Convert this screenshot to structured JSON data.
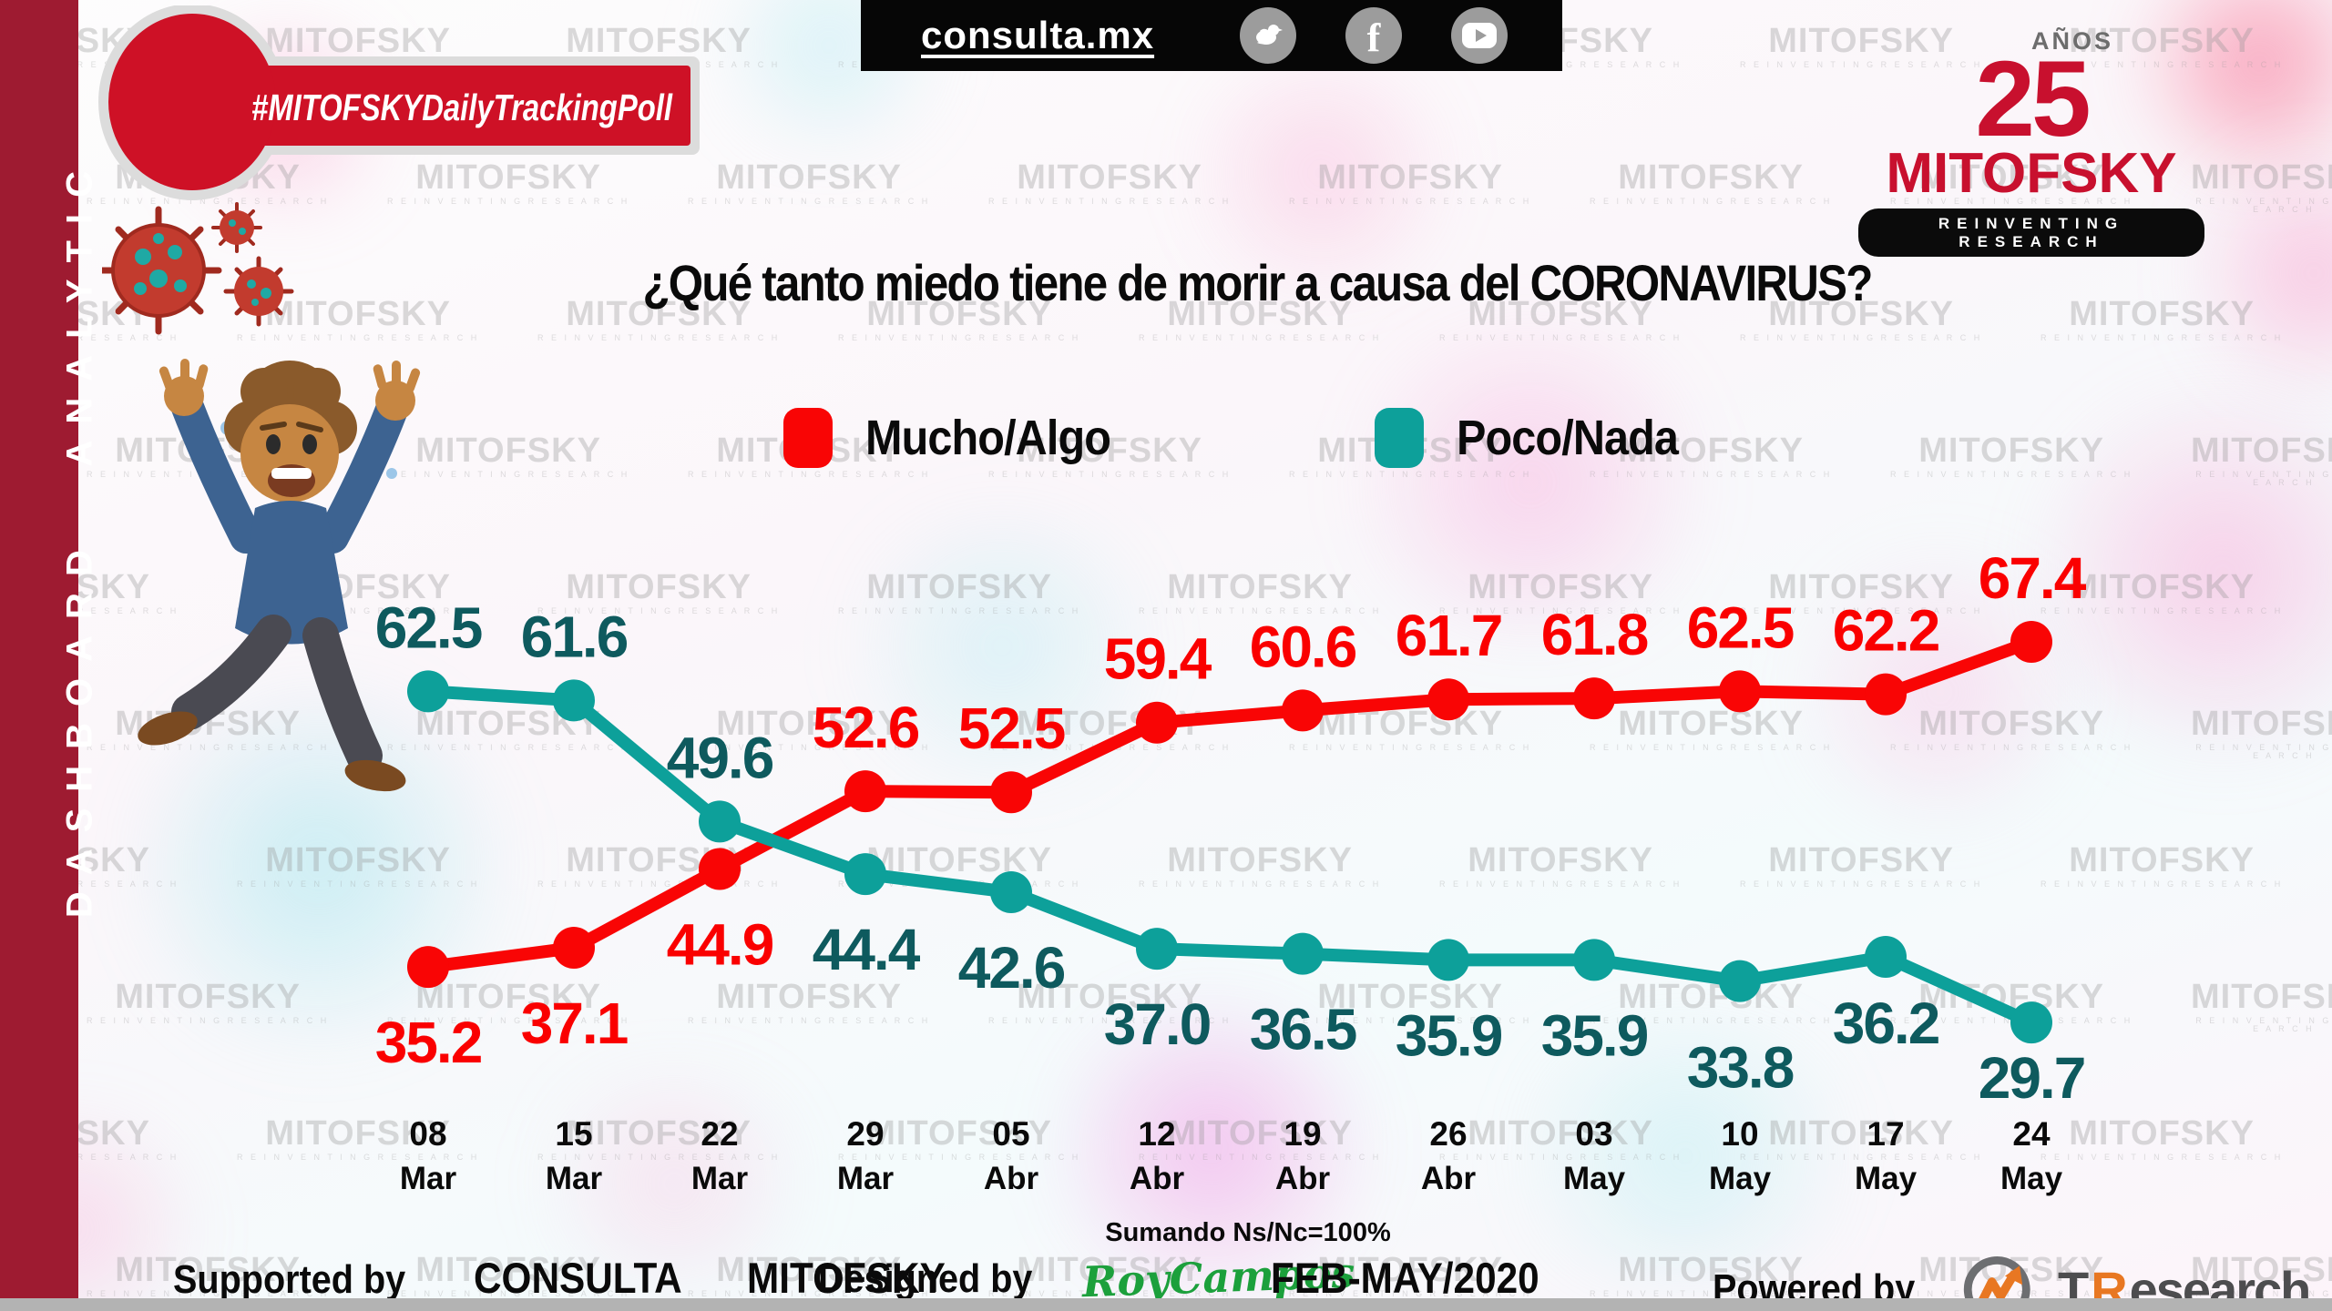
{
  "sidebar": {
    "label": "DASHBOARD ANALYTIC"
  },
  "topbar": {
    "url": "consulta.mx",
    "social": [
      "twitter",
      "facebook",
      "youtube"
    ]
  },
  "badge": {
    "label": "#MITOFSKYDailyTrackingPoll"
  },
  "brand": {
    "anos": "AÑOS",
    "years": "25",
    "name": "MITOFSKY",
    "tagline": "REINVENTING RESEARCH"
  },
  "watermark": {
    "text": "MITOFSKY",
    "sub": "R E I N V E N T I N G   R E S E A R C H"
  },
  "ui_colors": {
    "sidebar_red": "#9E1B31",
    "badge_red": "#CE1126",
    "brand_red": "#C8102E",
    "topbar_black": "#060606",
    "designer_green": "#1CA03C",
    "tresearch_orange": "#E87722",
    "tresearch_gray": "#4D4D4F"
  },
  "chart_data": {
    "type": "line",
    "title": "¿Qué tanto miedo tiene de morir a causa del CORONAVIRUS?",
    "note": "Sumando Ns/Nc=100%",
    "categories": [
      {
        "day": "08",
        "month": "Mar"
      },
      {
        "day": "15",
        "month": "Mar"
      },
      {
        "day": "22",
        "month": "Mar"
      },
      {
        "day": "29",
        "month": "Mar"
      },
      {
        "day": "05",
        "month": "Abr"
      },
      {
        "day": "12",
        "month": "Abr"
      },
      {
        "day": "19",
        "month": "Abr"
      },
      {
        "day": "26",
        "month": "Abr"
      },
      {
        "day": "03",
        "month": "May"
      },
      {
        "day": "10",
        "month": "May"
      },
      {
        "day": "17",
        "month": "May"
      },
      {
        "day": "24",
        "month": "May"
      }
    ],
    "series": [
      {
        "name": "Mucho/Algo",
        "color": "#F90505",
        "label_color": "#FA0000",
        "values": [
          35.2,
          37.1,
          44.9,
          52.6,
          52.5,
          59.4,
          60.6,
          61.7,
          61.8,
          62.5,
          62.2,
          67.4
        ],
        "label_pos": [
          "below",
          "below",
          "below",
          "above",
          "above",
          "above",
          "above",
          "above",
          "above",
          "above",
          "above",
          "above"
        ],
        "label_dy": [
          0,
          0,
          0,
          0,
          0,
          0,
          0,
          0,
          0,
          0,
          0,
          0
        ]
      },
      {
        "name": "Poco/Nada",
        "color": "#0DA09A",
        "label_color": "#0E5A5E",
        "values": [
          62.5,
          61.6,
          49.6,
          44.4,
          42.6,
          37.0,
          36.5,
          35.9,
          35.9,
          33.8,
          36.2,
          29.7
        ],
        "label_pos": [
          "above",
          "above",
          "above",
          "below",
          "below",
          "below",
          "below",
          "below",
          "below",
          "below",
          "below",
          "below"
        ],
        "label_dy": [
          0,
          0,
          0,
          0,
          0,
          0,
          0,
          0,
          0,
          12,
          -10,
          -22
        ]
      }
    ],
    "ylim": [
      25,
      72
    ],
    "grid": false,
    "legend_position": "top"
  },
  "footer": {
    "supported_by": "Supported by",
    "org1": "CONSULTA",
    "org2": "MITOFSKY",
    "designed_by": "Designed by",
    "designer": "RoyCampos",
    "period": "FEB-MAY/2020",
    "powered_by": "Powered by",
    "tresearch_t": "T",
    "tresearch_r": "R",
    "tresearch_rest": "esearch"
  }
}
